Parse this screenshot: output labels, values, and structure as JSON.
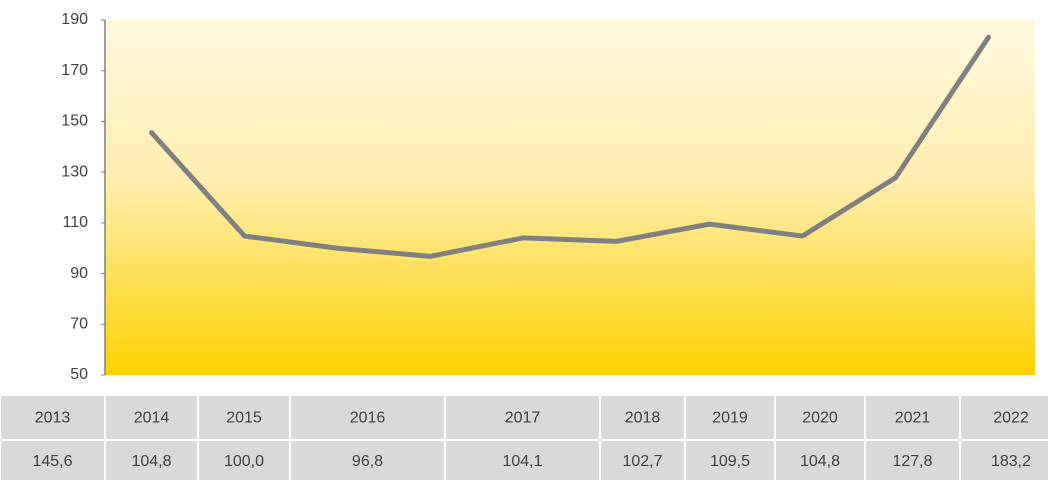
{
  "chart_data": {
    "type": "line",
    "categories": [
      "2013",
      "2014",
      "2015",
      "2016",
      "2017",
      "2018",
      "2019",
      "2020",
      "2021",
      "2022"
    ],
    "series": [
      {
        "color": "#808080",
        "values": [
          145.6,
          104.8,
          100.0,
          96.8,
          104.1,
          102.7,
          109.5,
          104.8,
          127.8,
          183.2
        ],
        "value_labels": [
          "145,6",
          "104,8",
          "100,0",
          "96,8",
          "104,1",
          "102,7",
          "109,5",
          "104,8",
          "127,8",
          "183,2"
        ]
      }
    ],
    "ylim": [
      50,
      190
    ],
    "yticks": [
      50,
      70,
      90,
      110,
      130,
      150,
      170,
      190
    ]
  }
}
